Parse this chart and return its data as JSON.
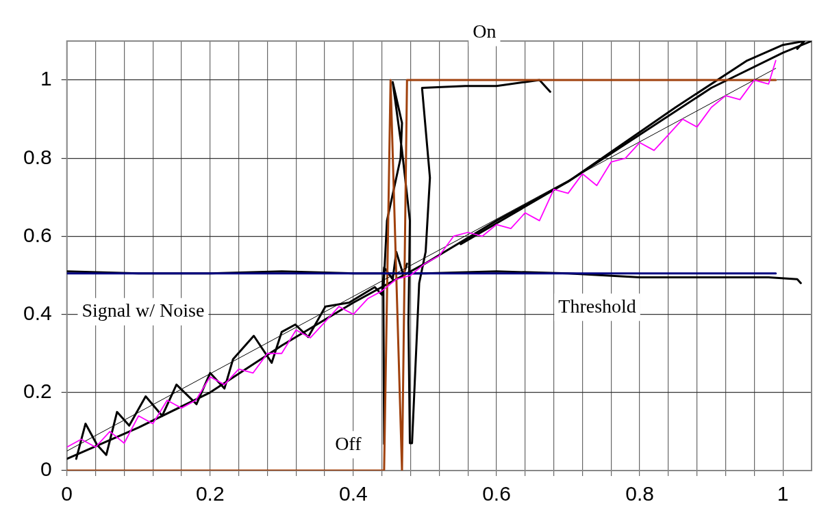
{
  "chart_data": {
    "type": "line",
    "xlim": [
      0,
      1.04
    ],
    "ylim": [
      0,
      1.1
    ],
    "xticks": [
      0,
      {
        "value": 0.04,
        "label": null
      },
      {
        "value": 0.08,
        "label": null
      },
      {
        "value": 0.12,
        "label": null
      },
      {
        "value": 0.16,
        "label": null
      },
      0.2,
      {
        "value": 0.24,
        "label": null
      },
      {
        "value": 0.28,
        "label": null
      },
      {
        "value": 0.32,
        "label": null
      },
      {
        "value": 0.36,
        "label": null
      },
      0.4,
      {
        "value": 0.44,
        "label": null
      },
      {
        "value": 0.48,
        "label": null
      },
      {
        "value": 0.52,
        "label": null
      },
      {
        "value": 0.56,
        "label": null
      },
      0.6,
      {
        "value": 0.64,
        "label": null
      },
      {
        "value": 0.68,
        "label": null
      },
      {
        "value": 0.72,
        "label": null
      },
      {
        "value": 0.76,
        "label": null
      },
      0.8,
      {
        "value": 0.84,
        "label": null
      },
      {
        "value": 0.88,
        "label": null
      },
      {
        "value": 0.92,
        "label": null
      },
      {
        "value": 0.96,
        "label": null
      },
      1
    ],
    "yticks": [
      0,
      0.2,
      0.4,
      0.6,
      0.8,
      1
    ],
    "grid": true,
    "legend": false,
    "marker": "none",
    "line_style": "solid",
    "series": [
      {
        "color": "#ff00ff",
        "x": [
          0,
          0.02,
          0.04,
          0.06,
          0.08,
          0.1,
          0.12,
          0.14,
          0.16,
          0.18,
          0.2,
          0.22,
          0.24,
          0.26,
          0.28,
          0.3,
          0.32,
          0.34,
          0.36,
          0.38,
          0.4,
          0.42,
          0.44,
          0.46,
          0.48,
          0.5,
          0.52,
          0.54,
          0.56,
          0.58,
          0.6,
          0.62,
          0.64,
          0.66,
          0.68,
          0.7,
          0.72,
          0.74,
          0.76,
          0.78,
          0.8,
          0.82,
          0.84,
          0.86,
          0.88,
          0.9,
          0.92,
          0.94,
          0.96,
          0.98,
          0.99
        ],
        "values": [
          0.06,
          0.08,
          0.06,
          0.1,
          0.07,
          0.14,
          0.12,
          0.18,
          0.16,
          0.18,
          0.24,
          0.22,
          0.26,
          0.25,
          0.3,
          0.3,
          0.36,
          0.34,
          0.38,
          0.42,
          0.4,
          0.44,
          0.46,
          0.49,
          0.5,
          0.53,
          0.55,
          0.6,
          0.61,
          0.6,
          0.63,
          0.62,
          0.66,
          0.64,
          0.72,
          0.71,
          0.76,
          0.73,
          0.79,
          0.8,
          0.84,
          0.82,
          0.86,
          0.9,
          0.88,
          0.93,
          0.96,
          0.95,
          1.0,
          0.99,
          1.05
        ]
      },
      {
        "color": "#000000",
        "x": [
          0,
          0.99
        ],
        "values": [
          0.05,
          1.03
        ]
      },
      {
        "color": "#000080",
        "x": [
          0,
          0.99
        ],
        "values": [
          0.505,
          0.505
        ]
      },
      {
        "color": "#a0410d",
        "x": [
          0,
          0.443,
          0.452,
          0.468,
          0.475,
          0.99
        ],
        "values": [
          0,
          0,
          1,
          0,
          1,
          1
        ]
      },
      {
        "color": "#000000",
        "x": [
          0,
          0.1,
          0.2,
          0.3,
          0.4,
          0.5,
          0.6,
          0.7,
          0.8,
          0.9,
          1.0,
          1.04
        ],
        "values": [
          0.03,
          0.11,
          0.2,
          0.32,
          0.43,
          0.53,
          0.64,
          0.74,
          0.86,
          0.98,
          1.07,
          1.1
        ]
      },
      {
        "color": "#000000",
        "x": [
          0.55,
          0.7,
          0.85,
          0.95,
          1.0,
          1.03,
          1.02
        ],
        "values": [
          0.58,
          0.74,
          0.93,
          1.05,
          1.09,
          1.1,
          1.08
        ]
      },
      {
        "color": "#000000",
        "x": [
          0,
          0.1,
          0.2,
          0.3,
          0.4,
          0.5,
          0.6,
          0.7,
          0.8,
          0.9,
          0.98,
          1.02,
          1.025
        ],
        "values": [
          0.51,
          0.505,
          0.505,
          0.51,
          0.505,
          0.505,
          0.51,
          0.505,
          0.495,
          0.495,
          0.495,
          0.49,
          0.48
        ]
      },
      {
        "color": "#000000",
        "x": [
          0.013,
          0.026,
          0.042,
          0.055,
          0.07,
          0.087,
          0.11,
          0.133,
          0.153,
          0.181,
          0.2,
          0.22,
          0.232,
          0.261,
          0.286,
          0.3,
          0.319,
          0.337,
          0.361,
          0.394,
          0.43,
          0.44,
          0.443,
          0.455,
          0.46,
          0.47,
          0.475
        ],
        "values": [
          0.03,
          0.12,
          0.066,
          0.04,
          0.15,
          0.115,
          0.19,
          0.14,
          0.22,
          0.17,
          0.25,
          0.21,
          0.285,
          0.345,
          0.276,
          0.355,
          0.374,
          0.342,
          0.42,
          0.43,
          0.47,
          0.45,
          0.52,
          0.49,
          0.56,
          0.5,
          0.53
        ]
      },
      {
        "color": "#000000",
        "x": [
          0.443,
          0.442,
          0.447,
          0.466,
          0.468,
          0.455,
          0.468,
          0.479,
          0.477,
          0.479,
          0.482,
          0.492,
          0.501,
          0.507,
          0.496,
          0.556,
          0.6,
          0.64,
          0.66,
          0.675
        ],
        "values": [
          0.068,
          0.46,
          0.64,
          0.8,
          0.89,
          0.995,
          0.82,
          0.64,
          0.38,
          0.07,
          0.07,
          0.48,
          0.56,
          0.75,
          0.98,
          0.985,
          0.985,
          0.995,
          1.0,
          0.97
        ]
      }
    ],
    "annotations": [
      "On",
      "Off",
      "Signal w/ Noise",
      "Threshold"
    ]
  }
}
